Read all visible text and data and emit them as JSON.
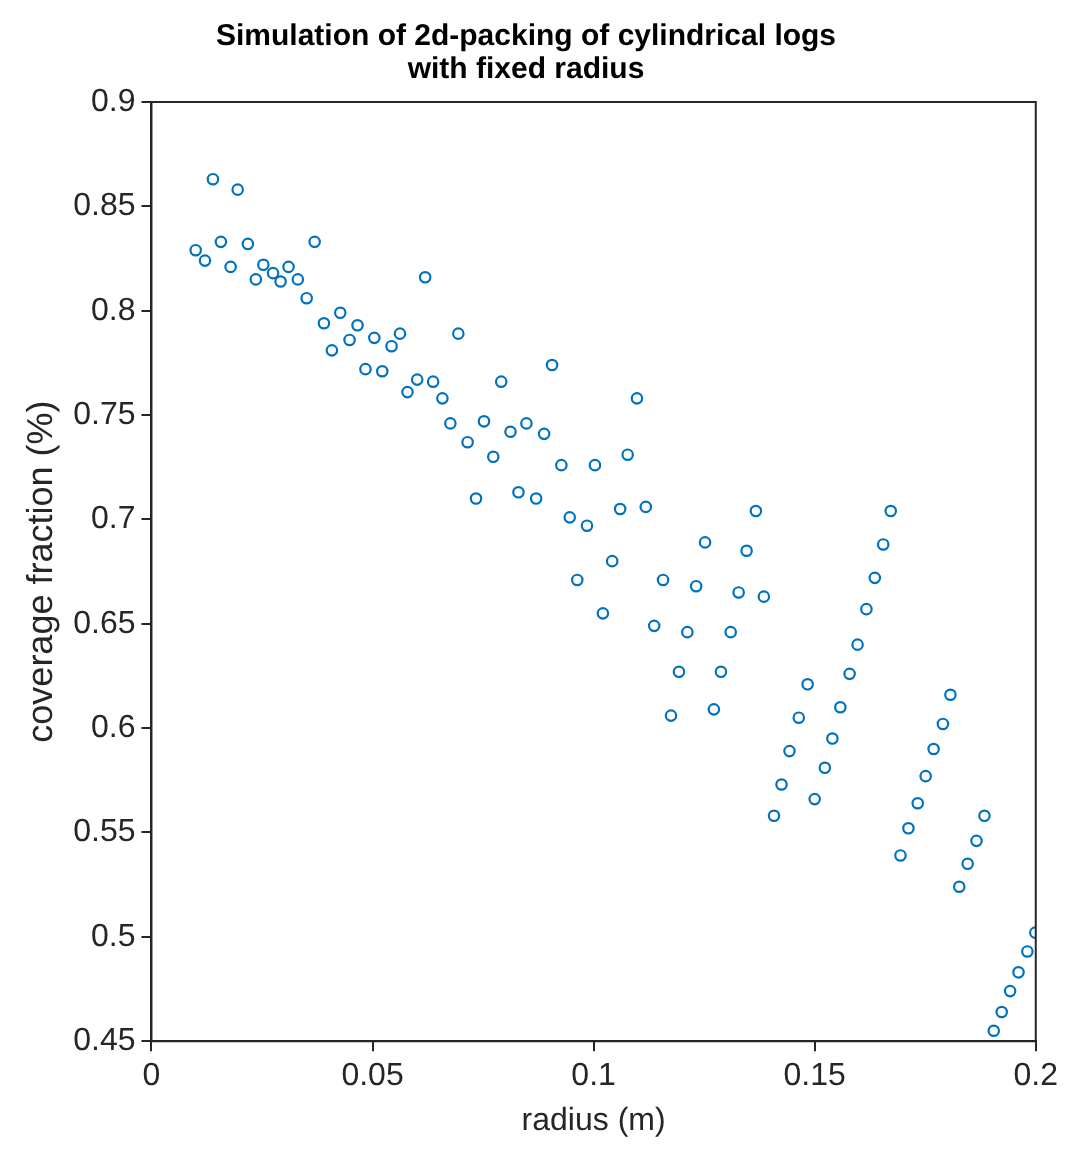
{
  "chart_data": {
    "type": "scatter",
    "title": "Simulation of 2d-packing of cylindrical logs\nwith fixed radius",
    "xlabel": "radius (m)",
    "ylabel": "coverage fraction (%)",
    "xlim": [
      0,
      0.2
    ],
    "xticks": [
      0,
      0.05,
      0.1,
      0.15,
      0.2
    ],
    "ylim": [
      0.45,
      0.9
    ],
    "yticks": [
      0.45,
      0.5,
      0.55,
      0.6,
      0.65,
      0.7,
      0.75,
      0.8,
      0.85,
      0.9
    ],
    "grid": false,
    "marker": "circle",
    "series": [
      {
        "color": "#0072bd",
        "x": [
          0.01,
          0.0121,
          0.0139,
          0.0157,
          0.0179,
          0.0195,
          0.0218,
          0.0236,
          0.0253,
          0.0275,
          0.0292,
          0.031,
          0.0331,
          0.0351,
          0.0369,
          0.039,
          0.0408,
          0.0427,
          0.0448,
          0.0466,
          0.0484,
          0.0504,
          0.0522,
          0.0543,
          0.0562,
          0.0579,
          0.0601,
          0.0619,
          0.0637,
          0.0658,
          0.0676,
          0.0694,
          0.0715,
          0.0734,
          0.0752,
          0.0773,
          0.0791,
          0.0812,
          0.083,
          0.0848,
          0.087,
          0.0888,
          0.0906,
          0.0927,
          0.0946,
          0.0963,
          0.0985,
          0.1003,
          0.1021,
          0.1042,
          0.106,
          0.1077,
          0.1098,
          0.1118,
          0.1137,
          0.1157,
          0.1175,
          0.1193,
          0.1212,
          0.1232,
          0.1252,
          0.1272,
          0.1288,
          0.131,
          0.1328,
          0.1346,
          0.1367,
          0.1385,
          0.1408,
          0.1425,
          0.1443,
          0.1464,
          0.1484,
          0.15,
          0.1523,
          0.154,
          0.1558,
          0.1579,
          0.1597,
          0.1617,
          0.1636,
          0.1655,
          0.1672,
          0.1694,
          0.1712,
          0.1733,
          0.1751,
          0.1769,
          0.179,
          0.1807,
          0.1827,
          0.1846,
          0.1866,
          0.1884,
          0.1905,
          0.1923,
          0.1942,
          0.1961,
          0.1981,
          0.1999
        ],
        "values": [
          0.829,
          0.824,
          0.863,
          0.833,
          0.821,
          0.858,
          0.832,
          0.815,
          0.822,
          0.818,
          0.814,
          0.821,
          0.815,
          0.806,
          0.833,
          0.794,
          0.781,
          0.799,
          0.786,
          0.793,
          0.772,
          0.787,
          0.771,
          0.783,
          0.789,
          0.761,
          0.767,
          0.816,
          0.766,
          0.758,
          0.746,
          0.789,
          0.737,
          0.71,
          0.747,
          0.73,
          0.766,
          0.742,
          0.713,
          0.746,
          0.71,
          0.741,
          0.774,
          0.726,
          0.701,
          0.671,
          0.697,
          0.726,
          0.655,
          0.68,
          0.705,
          0.731,
          0.758,
          0.706,
          0.649,
          0.671,
          0.606,
          0.627,
          0.646,
          0.668,
          0.689,
          0.609,
          0.627,
          0.646,
          0.665,
          0.685,
          0.704,
          0.663,
          0.558,
          0.573,
          0.589,
          0.605,
          0.621,
          0.566,
          0.581,
          0.595,
          0.61,
          0.626,
          0.64,
          0.657,
          0.672,
          0.688,
          0.704,
          0.539,
          0.552,
          0.564,
          0.577,
          0.59,
          0.602,
          0.616,
          0.524,
          0.535,
          0.546,
          0.558,
          0.455,
          0.464,
          0.474,
          0.483,
          0.493,
          0.502
        ]
      }
    ]
  }
}
